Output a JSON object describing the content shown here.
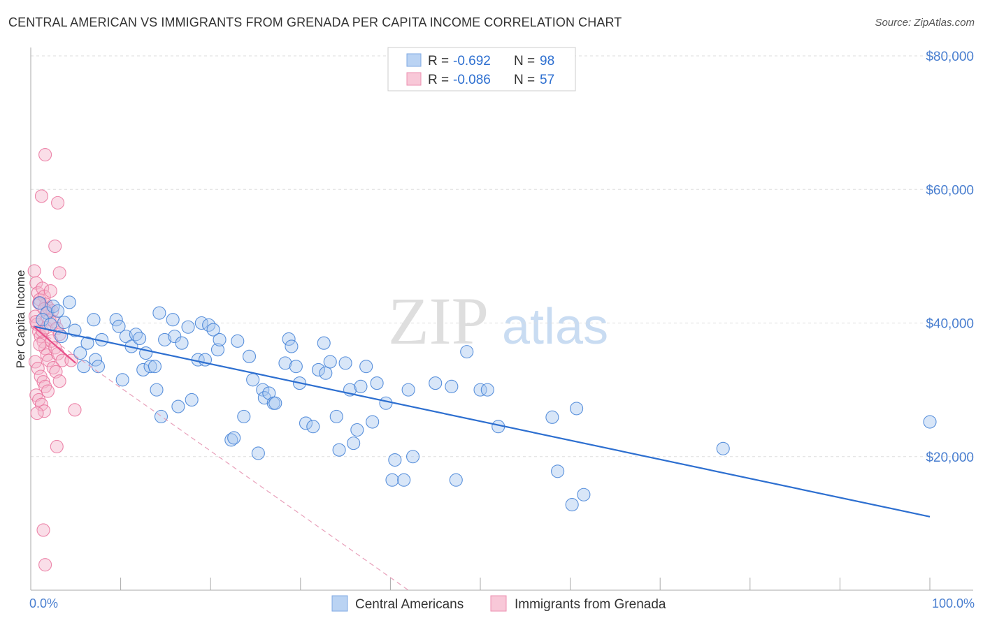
{
  "title": "CENTRAL AMERICAN VS IMMIGRANTS FROM GRENADA PER CAPITA INCOME CORRELATION CHART",
  "source": "Source: ZipAtlas.com",
  "watermark": {
    "zip": "ZIP",
    "atlas": "atlas"
  },
  "colors": {
    "blue": "#2d6fd0",
    "blue_fill": "#a9c8f0",
    "pink": "#e8508a",
    "pink_fill": "#f5b5cb",
    "grid": "#dddddd",
    "axis_text": "#4a7fd0"
  },
  "chart_data": {
    "type": "scatter",
    "title": "CENTRAL AMERICAN VS IMMIGRANTS FROM GRENADA PER CAPITA INCOME CORRELATION CHART",
    "xlabel": "",
    "ylabel": "Per Capita Income",
    "xlim": [
      0,
      100
    ],
    "ylim": [
      0,
      80000
    ],
    "x_tick_labels": [
      "0.0%",
      "100.0%"
    ],
    "y_ticks": [
      20000,
      40000,
      60000,
      80000
    ],
    "y_tick_labels": [
      "$20,000",
      "$40,000",
      "$60,000",
      "$80,000"
    ],
    "legend": [
      {
        "r_label": "R = ",
        "r": "-0.692",
        "n_label": "N = ",
        "n": "98"
      },
      {
        "r_label": "R = ",
        "r": "-0.086",
        "n_label": "N = ",
        "n": "57"
      }
    ],
    "series": [
      {
        "name": "Central Americans",
        "color": "#2d6fd0",
        "trend": {
          "x": [
            0.3,
            100
          ],
          "y": [
            39500,
            11000
          ]
        },
        "points": [
          [
            1.0,
            43000
          ],
          [
            1.8,
            41500
          ],
          [
            2.5,
            42500
          ],
          [
            3.0,
            41800
          ],
          [
            3.4,
            38000
          ],
          [
            4.3,
            43100
          ],
          [
            4.9,
            38900
          ],
          [
            5.5,
            35500
          ],
          [
            5.9,
            33500
          ],
          [
            6.3,
            37000
          ],
          [
            7.0,
            40500
          ],
          [
            7.2,
            34500
          ],
          [
            7.5,
            33500
          ],
          [
            7.9,
            37500
          ],
          [
            9.5,
            40500
          ],
          [
            9.8,
            39500
          ],
          [
            10.2,
            31500
          ],
          [
            10.6,
            38000
          ],
          [
            11.2,
            36500
          ],
          [
            11.7,
            38300
          ],
          [
            12.1,
            37700
          ],
          [
            12.5,
            33000
          ],
          [
            12.8,
            35500
          ],
          [
            13.3,
            33500
          ],
          [
            13.8,
            33500
          ],
          [
            14.0,
            30000
          ],
          [
            14.3,
            41500
          ],
          [
            14.5,
            26000
          ],
          [
            14.9,
            37500
          ],
          [
            15.8,
            40500
          ],
          [
            16.0,
            38000
          ],
          [
            16.4,
            27500
          ],
          [
            16.8,
            37000
          ],
          [
            17.5,
            39400
          ],
          [
            17.9,
            28500
          ],
          [
            18.6,
            34500
          ],
          [
            19.0,
            40000
          ],
          [
            19.4,
            34500
          ],
          [
            19.8,
            39700
          ],
          [
            20.3,
            39000
          ],
          [
            20.8,
            36000
          ],
          [
            21.0,
            37500
          ],
          [
            22.3,
            22500
          ],
          [
            22.6,
            22800
          ],
          [
            23.0,
            37300
          ],
          [
            23.7,
            26000
          ],
          [
            24.3,
            35000
          ],
          [
            24.7,
            31500
          ],
          [
            25.3,
            20500
          ],
          [
            25.8,
            30000
          ],
          [
            26.0,
            28800
          ],
          [
            26.5,
            29500
          ],
          [
            27.0,
            28000
          ],
          [
            27.2,
            28000
          ],
          [
            28.3,
            34000
          ],
          [
            28.7,
            37600
          ],
          [
            29.0,
            36500
          ],
          [
            29.5,
            33500
          ],
          [
            29.9,
            31000
          ],
          [
            30.6,
            25000
          ],
          [
            31.4,
            24500
          ],
          [
            32.0,
            33000
          ],
          [
            32.6,
            37000
          ],
          [
            32.8,
            32500
          ],
          [
            33.3,
            34200
          ],
          [
            34.0,
            26000
          ],
          [
            34.3,
            21000
          ],
          [
            35.0,
            34000
          ],
          [
            35.5,
            30000
          ],
          [
            35.9,
            22000
          ],
          [
            36.3,
            24000
          ],
          [
            36.7,
            30500
          ],
          [
            37.3,
            33500
          ],
          [
            38.0,
            25200
          ],
          [
            38.5,
            31000
          ],
          [
            39.5,
            28000
          ],
          [
            40.5,
            19500
          ],
          [
            40.2,
            16500
          ],
          [
            41.5,
            16500
          ],
          [
            42.0,
            30000
          ],
          [
            42.5,
            20000
          ],
          [
            45.0,
            31000
          ],
          [
            46.8,
            30500
          ],
          [
            47.3,
            16500
          ],
          [
            48.5,
            35700
          ],
          [
            50.0,
            30000
          ],
          [
            50.8,
            30000
          ],
          [
            52.0,
            24500
          ],
          [
            58.0,
            25900
          ],
          [
            58.6,
            17800
          ],
          [
            60.2,
            12800
          ],
          [
            60.7,
            27200
          ],
          [
            61.5,
            14300
          ],
          [
            77.0,
            21200
          ],
          [
            100.0,
            25200
          ],
          [
            1.3,
            40500
          ],
          [
            2.2,
            39800
          ],
          [
            3.7,
            40100
          ]
        ]
      },
      {
        "name": "Immigrants from Grenada",
        "color": "#e8508a",
        "trend": {
          "x": [
            0.3,
            5.0
          ],
          "y": [
            39500,
            34000
          ]
        },
        "trend_dashed": {
          "x": [
            0.3,
            42.0
          ],
          "y": [
            39500,
            0
          ]
        },
        "points": [
          [
            0.4,
            47800
          ],
          [
            0.6,
            46000
          ],
          [
            0.8,
            44500
          ],
          [
            1.0,
            43500
          ],
          [
            1.3,
            45200
          ],
          [
            1.5,
            44000
          ],
          [
            1.7,
            42800
          ],
          [
            1.9,
            41500
          ],
          [
            2.1,
            40500
          ],
          [
            0.5,
            41000
          ],
          [
            0.7,
            39800
          ],
          [
            0.9,
            38700
          ],
          [
            1.1,
            38000
          ],
          [
            1.4,
            37200
          ],
          [
            1.6,
            36200
          ],
          [
            1.8,
            35200
          ],
          [
            2.0,
            34400
          ],
          [
            0.5,
            34200
          ],
          [
            0.8,
            33200
          ],
          [
            1.1,
            32000
          ],
          [
            1.4,
            31200
          ],
          [
            1.6,
            30500
          ],
          [
            1.9,
            29800
          ],
          [
            0.6,
            29200
          ],
          [
            0.9,
            28500
          ],
          [
            1.2,
            27800
          ],
          [
            1.5,
            26800
          ],
          [
            0.7,
            26500
          ],
          [
            1.0,
            36800
          ],
          [
            1.3,
            38800
          ],
          [
            1.7,
            39300
          ],
          [
            2.0,
            42200
          ],
          [
            2.4,
            41800
          ],
          [
            2.6,
            40200
          ],
          [
            2.9,
            39200
          ],
          [
            3.2,
            38300
          ],
          [
            2.3,
            37300
          ],
          [
            2.7,
            36300
          ],
          [
            3.0,
            35400
          ],
          [
            3.5,
            34400
          ],
          [
            2.5,
            33300
          ],
          [
            2.8,
            32700
          ],
          [
            3.2,
            31300
          ],
          [
            4.5,
            34400
          ],
          [
            4.9,
            27000
          ],
          [
            3.2,
            47500
          ],
          [
            2.7,
            51500
          ],
          [
            1.6,
            65200
          ],
          [
            1.2,
            59000
          ],
          [
            3.0,
            58000
          ],
          [
            2.9,
            21500
          ],
          [
            1.4,
            9000
          ],
          [
            1.6,
            3800
          ],
          [
            0.6,
            40200
          ],
          [
            0.9,
            43000
          ],
          [
            1.5,
            42100
          ],
          [
            2.2,
            44800
          ]
        ]
      }
    ]
  },
  "bottom_legend": [
    "Central Americans",
    "Immigrants from Grenada"
  ]
}
